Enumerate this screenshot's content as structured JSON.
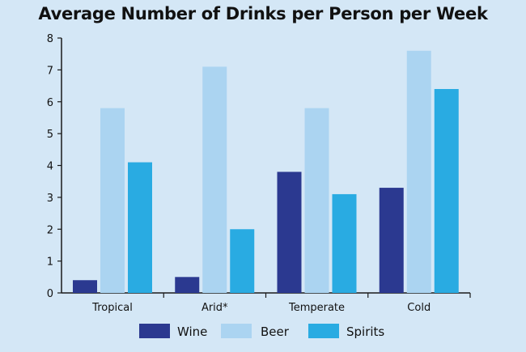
{
  "chart_data": {
    "type": "bar",
    "title": "Average Number of Drinks per Person per Week",
    "xlabel": "",
    "ylabel": "",
    "categories": [
      "Tropical",
      "Arid*",
      "Temperate",
      "Cold"
    ],
    "series": [
      {
        "name": "Wine",
        "color": "#2b3990",
        "values": [
          0.4,
          0.5,
          3.8,
          3.3
        ]
      },
      {
        "name": "Beer",
        "color": "#abd4f1",
        "values": [
          5.8,
          7.1,
          5.8,
          7.6
        ]
      },
      {
        "name": "Spirits",
        "color": "#29abe2",
        "values": [
          4.1,
          2.0,
          3.1,
          6.4
        ]
      }
    ],
    "ylim": [
      0,
      8
    ],
    "yticks": [
      0,
      1,
      2,
      3,
      4,
      5,
      6,
      7,
      8
    ],
    "grid": false,
    "legend": "bottom-center"
  },
  "colors": {
    "background": "#d4e7f6",
    "axis": "#1a1a1a"
  }
}
